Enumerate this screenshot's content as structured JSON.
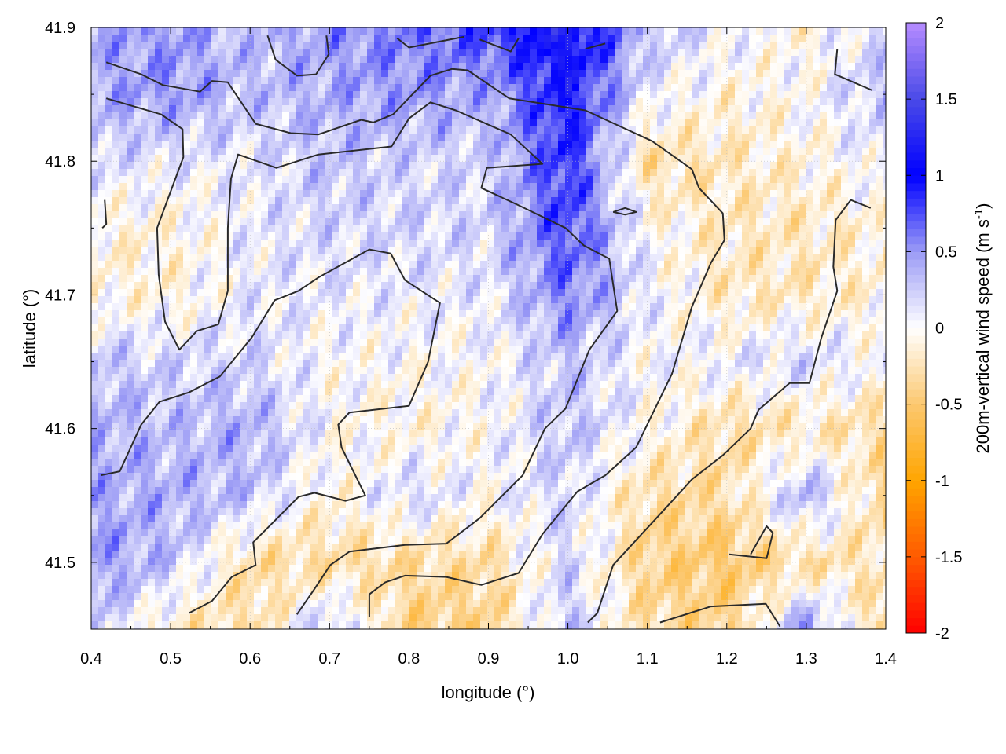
{
  "chart_data": {
    "type": "heatmap",
    "xlabel": "longitude (°)",
    "ylabel": "latitude (°)",
    "xlim": [
      0.4,
      1.4
    ],
    "ylim": [
      41.45,
      41.9
    ],
    "xticks": [
      "0.4",
      "0.5",
      "0.6",
      "0.7",
      "0.8",
      "0.9",
      "1.0",
      "1.1",
      "1.2",
      "1.3",
      "1.4"
    ],
    "yticks": [
      "41.5",
      "41.6",
      "41.7",
      "41.8",
      "41.9"
    ],
    "grid": true,
    "colorbar": {
      "label": "200m-vertical wind speed (m s",
      "label_sup": "-1",
      "label_end": ")",
      "range": [
        -2,
        2
      ],
      "ticks": [
        "-2",
        "-1.5",
        "-1",
        "-0.5",
        "0",
        "0.5",
        "1",
        "1.5",
        "2"
      ],
      "colors": {
        "-2": "#ff0000",
        "-1.5": "#ff5a00",
        "-1": "#ffa500",
        "-0.5": "#fcc870",
        "0": "#ffffff",
        "0.5": "#9b9bf5",
        "1": "#0000ff",
        "1.5": "#4a4ae8",
        "2": "#b68cff"
      }
    },
    "grid_lon": [
      0.4,
      0.5,
      0.6,
      0.7,
      0.8,
      0.9,
      1.0,
      1.1,
      1.2,
      1.3,
      1.4
    ],
    "grid_lat": [
      41.9,
      41.85,
      41.8,
      41.75,
      41.7,
      41.65,
      41.6,
      41.55,
      41.5,
      41.45
    ],
    "values": [
      [
        0.4,
        0.5,
        0.3,
        0.5,
        0.6,
        0.8,
        1.2,
        0.3,
        0.1,
        -0.1,
        0.2
      ],
      [
        0.4,
        0.5,
        0.3,
        0.4,
        0.5,
        0.4,
        1.0,
        0.1,
        -0.1,
        0.0,
        0.3
      ],
      [
        0.2,
        0.1,
        0.1,
        0.3,
        0.2,
        0.2,
        0.9,
        -0.3,
        -0.2,
        -0.1,
        0.1
      ],
      [
        -0.1,
        -0.1,
        0.1,
        0.2,
        0.2,
        0.2,
        0.8,
        0.0,
        -0.2,
        -0.2,
        -0.1
      ],
      [
        -0.1,
        -0.1,
        0.1,
        0.1,
        0.1,
        0.1,
        0.6,
        0.1,
        -0.2,
        -0.2,
        -0.1
      ],
      [
        0.3,
        0.2,
        0.2,
        0.0,
        0.0,
        0.0,
        0.3,
        0.0,
        0.1,
        0.2,
        0.0
      ],
      [
        0.4,
        0.3,
        0.4,
        0.0,
        -0.1,
        0.0,
        0.3,
        0.0,
        -0.3,
        -0.2,
        -0.3
      ],
      [
        0.4,
        0.4,
        0.3,
        -0.1,
        0.2,
        0.0,
        0.2,
        -0.3,
        -0.3,
        0.4,
        -0.4
      ],
      [
        0.5,
        0.3,
        -0.3,
        -0.3,
        -0.3,
        -0.3,
        0.2,
        -0.4,
        -0.5,
        -0.3,
        -0.2
      ],
      [
        0.3,
        -0.2,
        -0.3,
        0.3,
        -0.4,
        -0.4,
        0.3,
        -0.3,
        -0.4,
        0.5,
        -0.4
      ]
    ],
    "contours": [
      [
        [
          0.419,
          41.874
        ],
        [
          0.463,
          41.865
        ],
        [
          0.49,
          41.857
        ],
        [
          0.537,
          41.852
        ],
        [
          0.552,
          41.86
        ],
        [
          0.572,
          41.859
        ],
        [
          0.607,
          41.828
        ],
        [
          0.651,
          41.821
        ],
        [
          0.686,
          41.82
        ],
        [
          0.74,
          41.831
        ],
        [
          0.755,
          41.829
        ],
        [
          0.78,
          41.835
        ],
        [
          0.827,
          41.864
        ],
        [
          0.854,
          41.869
        ],
        [
          0.874,
          41.868
        ]
      ],
      [
        [
          0.419,
          41.847
        ],
        [
          0.488,
          41.835
        ],
        [
          0.515,
          41.824
        ],
        [
          0.516,
          41.803
        ],
        [
          0.483,
          41.75
        ],
        [
          0.485,
          41.715
        ],
        [
          0.493,
          41.68
        ],
        [
          0.511,
          41.659
        ],
        [
          0.533,
          41.673
        ],
        [
          0.56,
          41.678
        ],
        [
          0.572,
          41.703
        ],
        [
          0.572,
          41.75
        ],
        [
          0.576,
          41.787
        ],
        [
          0.585,
          41.805
        ],
        [
          0.633,
          41.795
        ],
        [
          0.686,
          41.805
        ],
        [
          0.778,
          41.811
        ],
        [
          0.8,
          41.832
        ],
        [
          0.827,
          41.844
        ],
        [
          0.859,
          41.838
        ],
        [
          0.928,
          41.82
        ],
        [
          0.968,
          41.798
        ],
        [
          0.898,
          41.795
        ],
        [
          0.891,
          41.78
        ],
        [
          0.938,
          41.767
        ],
        [
          0.997,
          41.75
        ],
        [
          1.02,
          41.737
        ],
        [
          1.052,
          41.727
        ],
        [
          1.062,
          41.688
        ],
        [
          1.027,
          41.659
        ],
        [
          0.997,
          41.615
        ],
        [
          0.971,
          41.6
        ],
        [
          0.943,
          41.565
        ],
        [
          0.889,
          41.533
        ],
        [
          0.847,
          41.514
        ],
        [
          0.795,
          41.513
        ],
        [
          0.725,
          41.508
        ],
        [
          0.701,
          41.498
        ],
        [
          0.681,
          41.48
        ],
        [
          0.659,
          41.461
        ]
      ],
      [
        [
          0.874,
          41.868
        ],
        [
          0.926,
          41.847
        ],
        [
          1.022,
          41.838
        ],
        [
          1.106,
          41.815
        ],
        [
          1.156,
          41.794
        ],
        [
          1.165,
          41.78
        ],
        [
          1.195,
          41.761
        ],
        [
          1.197,
          41.741
        ],
        [
          1.18,
          41.724
        ],
        [
          1.156,
          41.691
        ],
        [
          1.131,
          41.641
        ],
        [
          1.086,
          41.586
        ],
        [
          1.047,
          41.565
        ],
        [
          1.012,
          41.553
        ],
        [
          0.968,
          41.521
        ],
        [
          0.938,
          41.492
        ],
        [
          0.891,
          41.483
        ],
        [
          0.847,
          41.489
        ],
        [
          0.795,
          41.49
        ],
        [
          0.77,
          41.485
        ],
        [
          0.75,
          41.476
        ],
        [
          0.75,
          41.459
        ]
      ],
      [
        [
          0.412,
          41.565
        ],
        [
          0.436,
          41.568
        ],
        [
          0.463,
          41.603
        ],
        [
          0.486,
          41.62
        ],
        [
          0.523,
          41.627
        ],
        [
          0.562,
          41.639
        ],
        [
          0.602,
          41.668
        ],
        [
          0.631,
          41.696
        ],
        [
          0.661,
          41.703
        ],
        [
          0.686,
          41.713
        ],
        [
          0.75,
          41.734
        ],
        [
          0.777,
          41.731
        ],
        [
          0.795,
          41.711
        ],
        [
          0.839,
          41.694
        ],
        [
          0.824,
          41.65
        ],
        [
          0.8,
          41.617
        ],
        [
          0.725,
          41.612
        ],
        [
          0.711,
          41.603
        ],
        [
          0.715,
          41.586
        ],
        [
          0.745,
          41.55
        ],
        [
          0.72,
          41.546
        ],
        [
          0.681,
          41.552
        ],
        [
          0.661,
          41.549
        ],
        [
          0.604,
          41.515
        ],
        [
          0.607,
          41.498
        ],
        [
          0.577,
          41.489
        ],
        [
          0.552,
          41.471
        ],
        [
          0.523,
          41.462
        ]
      ],
      [
        [
          1.381,
          41.765
        ],
        [
          1.356,
          41.771
        ],
        [
          1.337,
          41.756
        ],
        [
          1.334,
          41.721
        ],
        [
          1.339,
          41.703
        ],
        [
          1.319,
          41.668
        ],
        [
          1.304,
          41.634
        ],
        [
          1.279,
          41.634
        ],
        [
          1.24,
          41.614
        ],
        [
          1.23,
          41.6
        ],
        [
          1.195,
          41.58
        ],
        [
          1.156,
          41.562
        ],
        [
          1.116,
          41.536
        ],
        [
          1.057,
          41.498
        ],
        [
          1.037,
          41.462
        ],
        [
          1.025,
          41.455
        ]
      ],
      [
        [
          1.116,
          41.455
        ],
        [
          1.18,
          41.467
        ],
        [
          1.249,
          41.469
        ],
        [
          1.267,
          41.452
        ]
      ],
      [
        [
          1.203,
          41.506
        ],
        [
          1.25,
          41.503
        ],
        [
          1.258,
          41.522
        ],
        [
          1.25,
          41.527
        ],
        [
          1.23,
          41.506
        ]
      ],
      [
        [
          0.622,
          41.894
        ],
        [
          0.632,
          41.876
        ],
        [
          0.659,
          41.864
        ],
        [
          0.683,
          41.865
        ],
        [
          0.699,
          41.88
        ],
        [
          0.696,
          41.894
        ]
      ],
      [
        [
          0.785,
          41.892
        ],
        [
          0.8,
          41.885
        ],
        [
          0.869,
          41.893
        ]
      ],
      [
        [
          0.889,
          41.891
        ],
        [
          0.928,
          41.882
        ],
        [
          0.938,
          41.892
        ]
      ],
      [
        [
          1.022,
          41.884
        ],
        [
          1.047,
          41.888
        ]
      ],
      [
        [
          1.339,
          41.884
        ],
        [
          1.336,
          41.865
        ],
        [
          1.383,
          41.853
        ]
      ],
      [
        [
          1.057,
          41.762
        ],
        [
          1.072,
          41.765
        ],
        [
          1.086,
          41.762
        ],
        [
          1.072,
          41.76
        ],
        [
          1.057,
          41.762
        ]
      ],
      [
        [
          0.417,
          41.771
        ],
        [
          0.419,
          41.753
        ],
        [
          0.414,
          41.75
        ]
      ]
    ]
  }
}
